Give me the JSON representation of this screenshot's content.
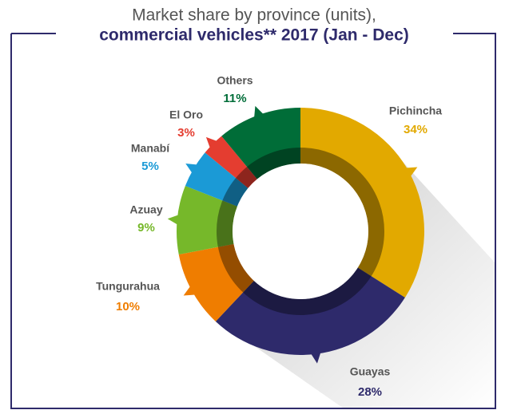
{
  "chart_data": {
    "type": "donut",
    "title": "Market share by province (units),",
    "subtitle": "commercial vehicles** 2017 (Jan - Dec)",
    "categories": [
      "Pichincha",
      "Guayas",
      "Tungurahua",
      "Azuay",
      "Manabí",
      "El Oro",
      "Others"
    ],
    "values": [
      34,
      28,
      10,
      9,
      5,
      3,
      11
    ],
    "value_labels": [
      "34%",
      "28%",
      "10%",
      "9%",
      "5%",
      "3%",
      "11%"
    ],
    "colors": [
      "#e2a900",
      "#2e2a6b",
      "#ef7d00",
      "#76b82a",
      "#1b9ad6",
      "#e43d30",
      "#006d38"
    ]
  }
}
